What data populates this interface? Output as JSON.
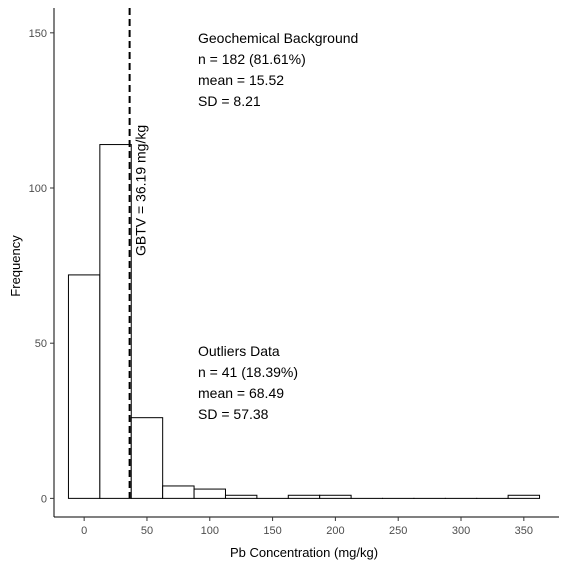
{
  "chart_data": {
    "type": "bar",
    "bin_width": 25,
    "bins": [
      {
        "x0": -12.5,
        "x1": 12.5,
        "count": 72
      },
      {
        "x0": 12.5,
        "x1": 37.5,
        "count": 114
      },
      {
        "x0": 37.5,
        "x1": 62.5,
        "count": 26
      },
      {
        "x0": 62.5,
        "x1": 87.5,
        "count": 4
      },
      {
        "x0": 87.5,
        "x1": 112.5,
        "count": 3
      },
      {
        "x0": 112.5,
        "x1": 137.5,
        "count": 1
      },
      {
        "x0": 137.5,
        "x1": 162.5,
        "count": 0
      },
      {
        "x0": 162.5,
        "x1": 187.5,
        "count": 1
      },
      {
        "x0": 187.5,
        "x1": 212.5,
        "count": 1
      },
      {
        "x0": 212.5,
        "x1": 237.5,
        "count": 0
      },
      {
        "x0": 237.5,
        "x1": 262.5,
        "count": 0
      },
      {
        "x0": 262.5,
        "x1": 287.5,
        "count": 0
      },
      {
        "x0": 287.5,
        "x1": 312.5,
        "count": 0
      },
      {
        "x0": 312.5,
        "x1": 337.5,
        "count": 0
      },
      {
        "x0": 337.5,
        "x1": 362.5,
        "count": 1
      }
    ],
    "xlabel": "Pb Concentration (mg/kg)",
    "ylabel": "Frequency",
    "xlim": [
      -24,
      378
    ],
    "ylim": [
      -6,
      158
    ],
    "xticks": [
      0,
      50,
      100,
      150,
      200,
      250,
      300,
      350
    ],
    "yticks": [
      0,
      50,
      100,
      150
    ],
    "vline": {
      "x": 36.19,
      "label": "GBTV = 36.19 mg/kg"
    },
    "annotations": {
      "background": {
        "title": "Geochemical Background",
        "n": "n = 182 (81.61%)",
        "mean": "mean = 15.52",
        "sd": "SD = 8.21"
      },
      "outliers": {
        "title": "Outliers Data",
        "n": "n = 41 (18.39%)",
        "mean": "mean = 68.49",
        "sd": "SD = 57.38"
      }
    },
    "grid": false,
    "colors": {
      "bar_fill": "#ffffff",
      "bar_stroke": "#000000"
    }
  }
}
